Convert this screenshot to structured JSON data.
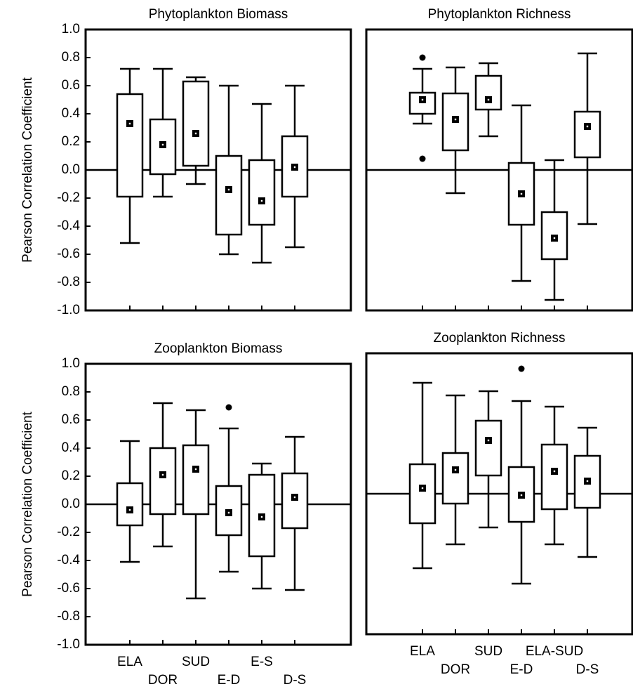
{
  "chart_data": [
    {
      "type": "box",
      "title": "Phytoplankton Biomass",
      "ylabel": "Pearson Correlation Coefficient",
      "categories": [
        null,
        null,
        null,
        null,
        null,
        null
      ],
      "high": [
        0.72,
        0.72,
        0.66,
        0.6,
        0.47,
        0.6
      ],
      "q3": [
        0.54,
        0.36,
        0.63,
        0.1,
        0.07,
        0.24
      ],
      "mean": [
        0.33,
        0.18,
        0.26,
        -0.14,
        -0.22,
        0.02
      ],
      "q1": [
        -0.19,
        -0.03,
        0.03,
        -0.46,
        -0.39,
        -0.19
      ],
      "low": [
        -0.52,
        -0.19,
        -0.1,
        -0.6,
        -0.66,
        -0.55
      ],
      "outliers": [
        [],
        [],
        [],
        [],
        [],
        []
      ],
      "hline": 0,
      "ylim": [
        -1.0,
        1.0
      ],
      "yticks": [
        {
          "value": 1.0,
          "label": "1.0"
        },
        {
          "value": 0.8,
          "label": "0.8"
        },
        {
          "value": 0.6,
          "label": "0.6"
        },
        {
          "value": 0.4,
          "label": "0.4"
        },
        {
          "value": 0.2,
          "label": "0.2"
        },
        {
          "value": 0.0,
          "label": "0.0"
        },
        {
          "value": -0.2,
          "label": "-0.2"
        },
        {
          "value": -0.4,
          "label": "-0.4"
        },
        {
          "value": -0.6,
          "label": "-0.6"
        },
        {
          "value": -0.8,
          "label": "-0.8"
        },
        {
          "value": -1.0,
          "label": "-1.0"
        }
      ]
    },
    {
      "type": "box",
      "title": "Phytoplankton Richness",
      "categories": [
        null,
        null,
        null,
        null,
        null,
        null
      ],
      "high": [
        0.72,
        0.73,
        0.76,
        0.46,
        0.07,
        0.83
      ],
      "q3": [
        0.55,
        0.545,
        0.67,
        0.05,
        -0.3,
        0.415
      ],
      "mean": [
        0.5,
        0.36,
        0.5,
        -0.17,
        -0.485,
        0.31
      ],
      "q1": [
        0.4,
        0.14,
        0.43,
        -0.39,
        -0.635,
        0.09
      ],
      "low": [
        0.33,
        -0.165,
        0.24,
        -0.79,
        -0.925,
        -0.385
      ],
      "outliers": [
        [
          0.8,
          0.08
        ],
        [],
        [],
        [],
        [],
        []
      ],
      "hline": 0,
      "ylim": [
        -1.0,
        1.0
      ]
    },
    {
      "type": "box",
      "title": "Zooplankton Biomass",
      "ylabel": "Pearson Correlation Coefficient",
      "categories": [
        "ELA",
        "DOR",
        "SUD",
        "E-D",
        "E-S",
        "D-S"
      ],
      "high": [
        0.45,
        0.72,
        0.67,
        0.54,
        0.29,
        0.48
      ],
      "q3": [
        0.15,
        0.4,
        0.42,
        0.13,
        0.21,
        0.22
      ],
      "mean": [
        -0.04,
        0.21,
        0.25,
        -0.06,
        -0.09,
        0.05
      ],
      "q1": [
        -0.15,
        -0.07,
        -0.07,
        -0.22,
        -0.37,
        -0.17
      ],
      "low": [
        -0.41,
        -0.3,
        -0.67,
        -0.48,
        -0.6,
        -0.61
      ],
      "outliers": [
        [],
        [],
        [],
        [
          0.69
        ],
        [],
        []
      ],
      "hline": 0,
      "ylim": [
        -1.0,
        1.0
      ],
      "yticks": [
        {
          "value": 1.0,
          "label": "1.0"
        },
        {
          "value": 0.8,
          "label": "0.8"
        },
        {
          "value": 0.6,
          "label": "0.6"
        },
        {
          "value": 0.4,
          "label": "0.4"
        },
        {
          "value": 0.2,
          "label": "0.2"
        },
        {
          "value": 0.0,
          "label": "0.0"
        },
        {
          "value": -0.2,
          "label": "-0.2"
        },
        {
          "value": -0.4,
          "label": "-0.4"
        },
        {
          "value": -0.6,
          "label": "-0.6"
        },
        {
          "value": -0.8,
          "label": "-0.8"
        },
        {
          "value": -1.0,
          "label": "-1.0"
        }
      ]
    },
    {
      "type": "box",
      "title": "Zooplankton Richness",
      "categories": [
        "ELA",
        "DOR",
        "SUD",
        "E-D",
        "ELA-SUD",
        "D-S"
      ],
      "high": [
        0.79,
        0.7,
        0.73,
        0.66,
        0.62,
        0.47
      ],
      "q3": [
        0.21,
        0.29,
        0.52,
        0.19,
        0.35,
        0.27
      ],
      "mean": [
        0.04,
        0.17,
        0.38,
        -0.01,
        0.16,
        0.09
      ],
      "q1": [
        -0.21,
        -0.07,
        0.13,
        -0.2,
        -0.11,
        -0.1
      ],
      "low": [
        -0.53,
        -0.36,
        -0.24,
        -0.64,
        -0.36,
        -0.45
      ],
      "outliers": [
        [],
        [],
        [],
        [
          0.89
        ],
        [],
        []
      ],
      "hline": 0,
      "ylim": [
        -1.0,
        1.0
      ]
    }
  ]
}
